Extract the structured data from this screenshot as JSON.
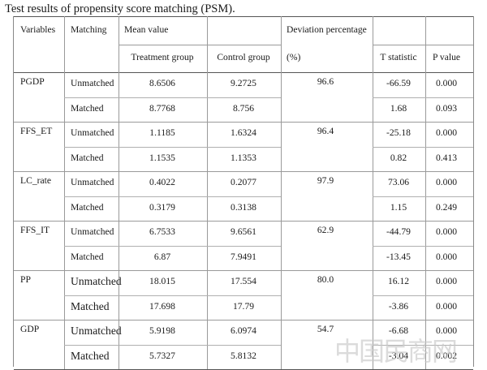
{
  "caption": "Test results of propensity score matching (PSM).",
  "headers": {
    "variables": "Variables",
    "matching": "Matching",
    "mean_value": "Mean value",
    "treatment_group": "Treatment group",
    "control_group": "Control group",
    "deviation_line1": "Deviation percentage",
    "deviation_line2": "(%)",
    "t_statistic": "T statistic",
    "p_value": "P value"
  },
  "groups": [
    {
      "variable": "PGDP",
      "deviation": "96.6",
      "rows": [
        {
          "matching": "Unmatched",
          "treatment": "8.6506",
          "control": "9.2725",
          "t": "-66.59",
          "p": "0.000"
        },
        {
          "matching": "Matched",
          "treatment": "8.7768",
          "control": "8.756",
          "t": "1.68",
          "p": "0.093"
        }
      ]
    },
    {
      "variable": "FFS_ET",
      "deviation": "96.4",
      "rows": [
        {
          "matching": "Unmatched",
          "treatment": "1.1185",
          "control": "1.6324",
          "t": "-25.18",
          "p": "0.000"
        },
        {
          "matching": "Matched",
          "treatment": "1.1535",
          "control": "1.1353",
          "t": "0.82",
          "p": "0.413"
        }
      ]
    },
    {
      "variable": "LC_rate",
      "deviation": "97.9",
      "rows": [
        {
          "matching": "Unmatched",
          "treatment": "0.4022",
          "control": "0.2077",
          "t": "73.06",
          "p": "0.000"
        },
        {
          "matching": "Matched",
          "treatment": "0.3179",
          "control": "0.3138",
          "t": "1.15",
          "p": "0.249"
        }
      ]
    },
    {
      "variable": "FFS_IT",
      "deviation": "62.9",
      "rows": [
        {
          "matching": "Unmatched",
          "treatment": "6.7533",
          "control": "9.6561",
          "t": "-44.79",
          "p": "0.000"
        },
        {
          "matching": "Matched",
          "treatment": "6.87",
          "control": "7.9491",
          "t": "-13.45",
          "p": "0.000"
        }
      ]
    },
    {
      "variable": "PP",
      "deviation": "80.0",
      "rows": [
        {
          "matching": "Unmatched",
          "treatment": "18.015",
          "control": "17.554",
          "t": "16.12",
          "p": "0.000"
        },
        {
          "matching": "Matched",
          "treatment": "17.698",
          "control": "17.79",
          "t": "-3.86",
          "p": "0.000"
        }
      ]
    },
    {
      "variable": "GDP",
      "deviation": "54.7",
      "rows": [
        {
          "matching": "Unmatched",
          "treatment": "5.9198",
          "control": "6.0974",
          "t": "-6.68",
          "p": "0.000"
        },
        {
          "matching": "Matched",
          "treatment": "5.7327",
          "control": "5.8132",
          "t": "-3.04",
          "p": "0.002"
        }
      ]
    }
  ],
  "watermark": "中国民商网"
}
